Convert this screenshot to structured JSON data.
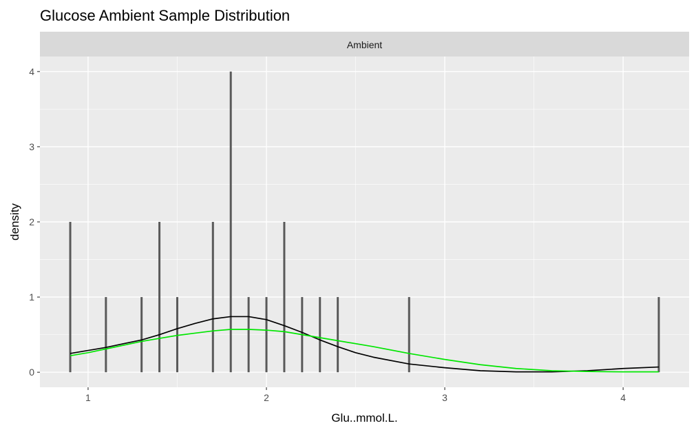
{
  "chart_data": {
    "type": "bar",
    "title": "Glucose Ambient Sample Distribution",
    "facet": "Ambient",
    "xlabel": "Glu..mmol.L.",
    "ylabel": "density",
    "xlim": [
      0.73,
      4.37
    ],
    "ylim": [
      -0.2,
      4.2
    ],
    "x_ticks": [
      1,
      2,
      3,
      4
    ],
    "y_ticks": [
      0,
      1,
      2,
      3,
      4
    ],
    "grid": true,
    "bars": [
      {
        "x": 0.9,
        "value": 2
      },
      {
        "x": 1.1,
        "value": 1
      },
      {
        "x": 1.3,
        "value": 1
      },
      {
        "x": 1.4,
        "value": 2
      },
      {
        "x": 1.5,
        "value": 1
      },
      {
        "x": 1.7,
        "value": 2
      },
      {
        "x": 1.8,
        "value": 4
      },
      {
        "x": 1.9,
        "value": 1
      },
      {
        "x": 2.0,
        "value": 1
      },
      {
        "x": 2.1,
        "value": 2
      },
      {
        "x": 2.2,
        "value": 1
      },
      {
        "x": 2.3,
        "value": 1
      },
      {
        "x": 2.4,
        "value": 1
      },
      {
        "x": 2.8,
        "value": 1
      },
      {
        "x": 4.2,
        "value": 1
      }
    ],
    "series": [
      {
        "color": "#000000",
        "x": [
          0.9,
          1.0,
          1.1,
          1.2,
          1.3,
          1.4,
          1.5,
          1.6,
          1.7,
          1.8,
          1.9,
          2.0,
          2.1,
          2.2,
          2.3,
          2.4,
          2.5,
          2.6,
          2.8,
          3.0,
          3.2,
          3.4,
          3.6,
          3.8,
          4.0,
          4.2
        ],
        "y": [
          0.25,
          0.29,
          0.33,
          0.38,
          0.43,
          0.5,
          0.58,
          0.65,
          0.71,
          0.74,
          0.74,
          0.7,
          0.62,
          0.53,
          0.43,
          0.34,
          0.26,
          0.2,
          0.11,
          0.06,
          0.02,
          0.005,
          0.005,
          0.02,
          0.05,
          0.07
        ]
      },
      {
        "color": "#00e600",
        "x": [
          0.9,
          1.0,
          1.1,
          1.2,
          1.3,
          1.4,
          1.5,
          1.6,
          1.7,
          1.8,
          1.9,
          2.0,
          2.1,
          2.2,
          2.3,
          2.4,
          2.6,
          2.8,
          3.0,
          3.2,
          3.4,
          3.6,
          3.8,
          4.0,
          4.2
        ],
        "y": [
          0.22,
          0.26,
          0.31,
          0.36,
          0.41,
          0.45,
          0.49,
          0.52,
          0.55,
          0.57,
          0.57,
          0.56,
          0.54,
          0.5,
          0.46,
          0.42,
          0.34,
          0.25,
          0.17,
          0.1,
          0.05,
          0.02,
          0.01,
          0.005,
          0.005
        ]
      }
    ]
  }
}
